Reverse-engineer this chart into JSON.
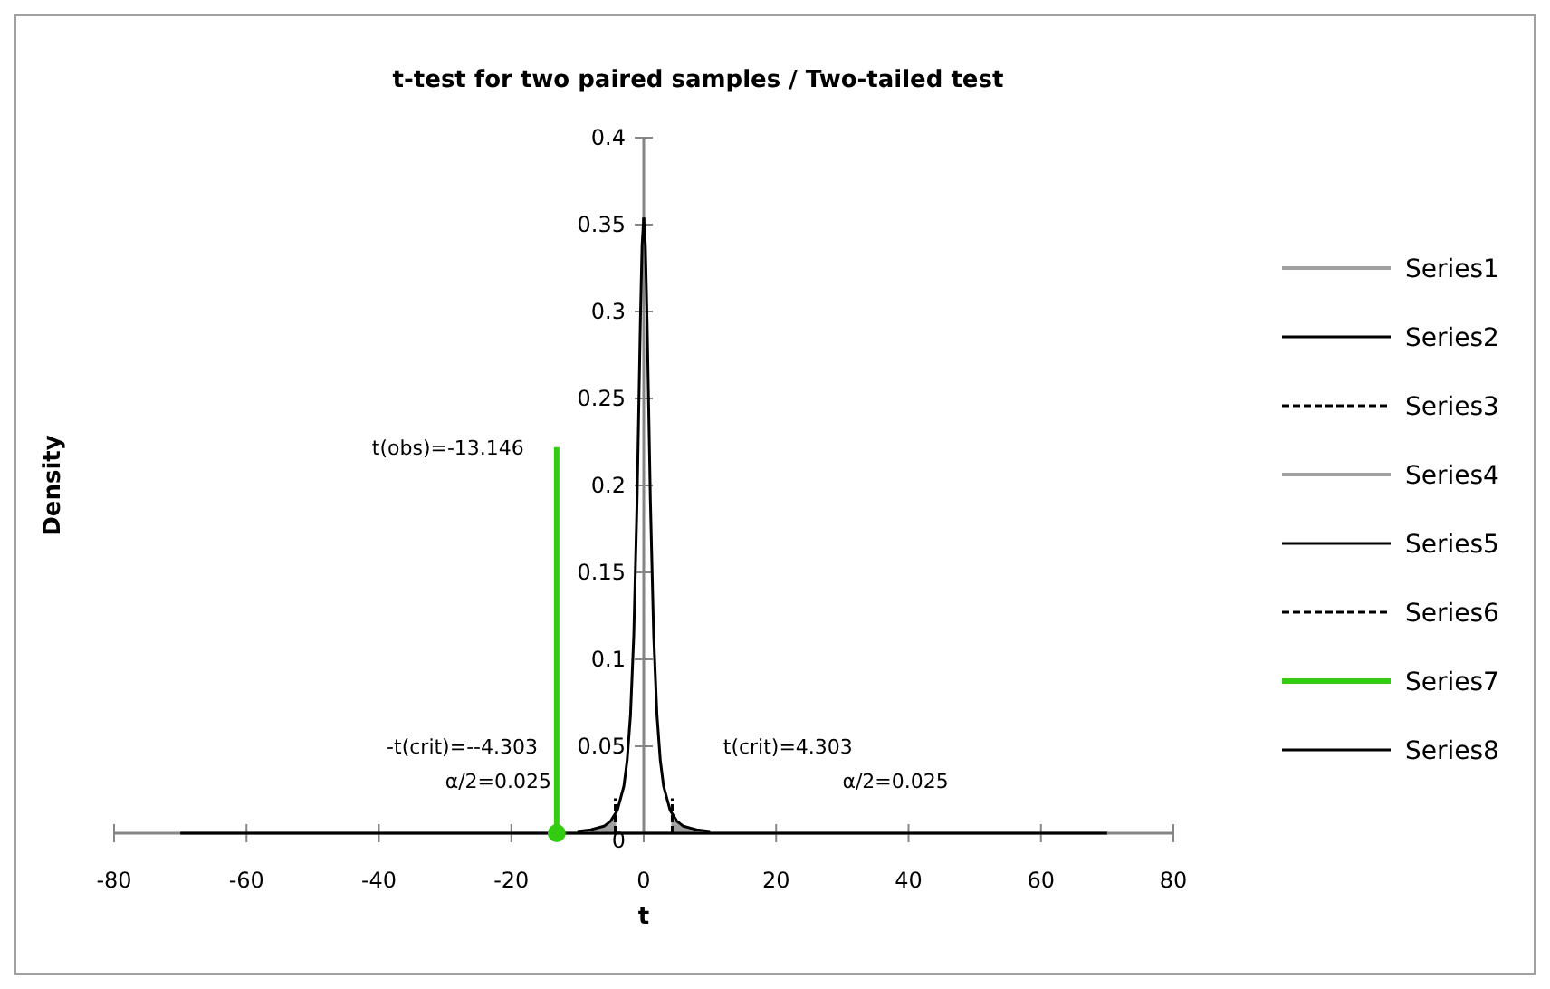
{
  "chart_data": {
    "type": "line",
    "title": "t-test for two paired samples / Two-tailed test",
    "xlabel": "t",
    "ylabel": "Density",
    "xlim": [
      -80,
      80
    ],
    "xticks": [
      -80,
      -60,
      -40,
      -20,
      0,
      20,
      40,
      60,
      80
    ],
    "ylim": [
      0,
      0.4
    ],
    "yticks": [
      0,
      0.05,
      0.1,
      0.15,
      0.2,
      0.25,
      0.3,
      0.35,
      0.4
    ],
    "grid": false,
    "legend": "right",
    "series": [
      {
        "name": "Series1",
        "type": "area",
        "color": "#a0a0a0",
        "x": [
          -10,
          -9,
          -8,
          -7,
          -6,
          -5,
          -4.303
        ],
        "values": [
          0.001,
          0.001,
          0.002,
          0.003,
          0.004,
          0.007,
          0.011
        ]
      },
      {
        "name": "Series2",
        "color": "#000000",
        "line_style": "solid",
        "x": [
          -10,
          -8,
          -6,
          -5,
          -4,
          -3,
          -2.5,
          -2,
          -1.5,
          -1,
          -0.75,
          -0.5,
          -0.25,
          0
        ],
        "values": [
          0.001,
          0.002,
          0.004,
          0.007,
          0.013,
          0.027,
          0.042,
          0.068,
          0.114,
          0.192,
          0.244,
          0.296,
          0.338,
          0.354
        ]
      },
      {
        "name": "Series3",
        "type": "line",
        "color": "#000000",
        "line_style": "dashed",
        "x": [
          -4.303,
          -4.303
        ],
        "values": [
          0,
          0.02
        ]
      },
      {
        "name": "Series4",
        "type": "area",
        "color": "#a0a0a0",
        "x": [
          4.303,
          5,
          6,
          7,
          8,
          9,
          10
        ],
        "values": [
          0.011,
          0.007,
          0.004,
          0.003,
          0.002,
          0.001,
          0.001
        ]
      },
      {
        "name": "Series5",
        "color": "#000000",
        "line_style": "solid",
        "x": [
          0,
          0.25,
          0.5,
          0.75,
          1,
          1.5,
          2,
          2.5,
          3,
          4,
          5,
          6,
          8,
          10
        ],
        "values": [
          0.354,
          0.338,
          0.296,
          0.244,
          0.192,
          0.114,
          0.068,
          0.042,
          0.027,
          0.013,
          0.007,
          0.004,
          0.002,
          0.001
        ]
      },
      {
        "name": "Series6",
        "type": "line",
        "color": "#000000",
        "line_style": "dashed",
        "x": [
          4.303,
          4.303
        ],
        "values": [
          0,
          0.02
        ]
      },
      {
        "name": "Series7",
        "type": "line",
        "color": "#33cc11",
        "line_style": "solid",
        "x": [
          -13.146,
          -13.146
        ],
        "values": [
          0,
          0.222
        ]
      },
      {
        "name": "Series8",
        "type": "line",
        "color": "#000000",
        "line_style": "solid",
        "x": [
          -70,
          70
        ],
        "values": [
          0,
          0
        ]
      },
      {
        "type": "scatter",
        "color": "#33cc11",
        "marker": "circle",
        "x": [
          -13.146
        ],
        "values": [
          0
        ]
      }
    ],
    "annotations": [
      {
        "text": "t(obs)=-13.146",
        "x": -13.146,
        "y": 0.222
      },
      "-t(crit)=--4.303",
      "α/2=0.025",
      "t(crit)=4.303",
      "α/2=0.025"
    ]
  }
}
